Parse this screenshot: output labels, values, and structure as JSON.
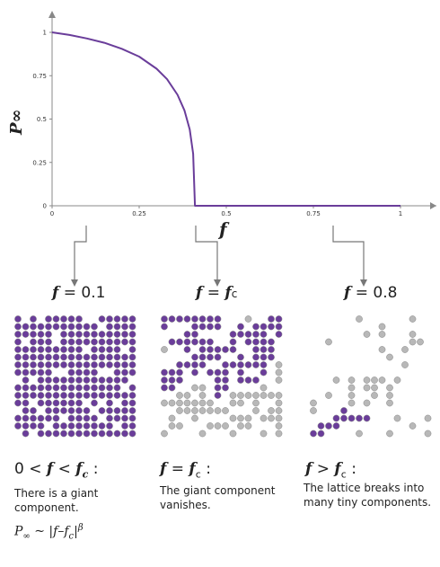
{
  "chart_data": {
    "type": "line",
    "xlabel": "f",
    "ylabel": "P∞",
    "xlim": [
      0,
      1
    ],
    "ylim": [
      0,
      1
    ],
    "x_ticks": [
      "0",
      "0.25",
      "0.5",
      "0.75",
      "1"
    ],
    "y_ticks": [
      "0",
      "0.25",
      "0.5",
      "0.75",
      "1"
    ],
    "critical_f": 0.41,
    "series": [
      {
        "color": "#6a3d9a",
        "x": [
          0,
          0.05,
          0.1,
          0.15,
          0.2,
          0.25,
          0.3,
          0.33,
          0.36,
          0.38,
          0.395,
          0.405,
          0.41,
          0.41,
          0.5,
          0.75,
          1.0
        ],
        "y": [
          1.0,
          0.985,
          0.965,
          0.94,
          0.905,
          0.86,
          0.79,
          0.73,
          0.64,
          0.55,
          0.44,
          0.3,
          0.0,
          0.0,
          0.0,
          0.0,
          0.0
        ]
      }
    ]
  },
  "panels": [
    {
      "label_pre": "f",
      "label_post": "= 0.1",
      "condition": {
        "a": "0 <",
        "b": "f",
        "c": "<",
        "d": "f",
        "sub": "c",
        "e": ":"
      },
      "description": "There is a giant component.",
      "formula": {
        "p": "P",
        "inf": "∞",
        "mid": " ~ |",
        "f": "f",
        "dash": "–",
        "fc": "f",
        "sub": "c",
        "close": "|",
        "beta": "β"
      }
    },
    {
      "label_pre": "f",
      "label_post": "=",
      "label_fc": "f",
      "label_sub": "c",
      "condition": {
        "a": "f",
        "b": "=",
        "c": "f",
        "sub": "c",
        "e": ":"
      },
      "description": "The giant component vanishes."
    },
    {
      "label_pre": "f",
      "label_post": "= 0.8",
      "condition": {
        "a": "f",
        "b": ">",
        "c": "f",
        "sub": "c",
        "e": ":"
      },
      "description": "The lattice breaks into many tiny components."
    }
  ],
  "colors": {
    "purple": "#6a3d9a",
    "gray": "#aaaaaa",
    "axis": "#888888",
    "arrow": "#777777"
  }
}
